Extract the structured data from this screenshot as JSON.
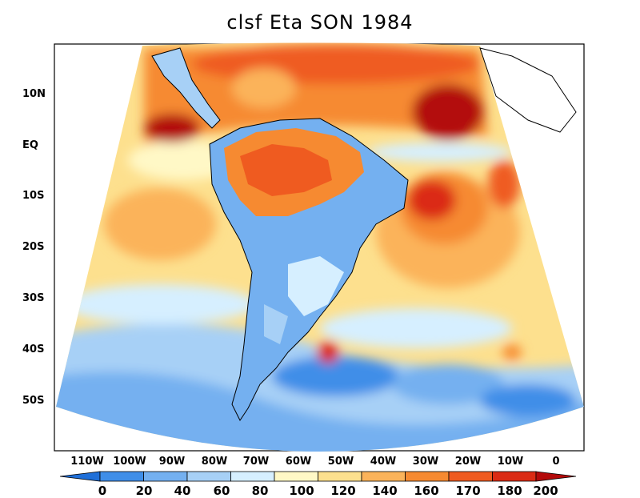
{
  "title": "clsf Eta SON 1984",
  "lat_labels": [
    "10N",
    "EQ",
    "10S",
    "20S",
    "30S",
    "40S",
    "50S"
  ],
  "lon_labels": [
    "110W",
    "100W",
    "90W",
    "80W",
    "70W",
    "60W",
    "50W",
    "40W",
    "30W",
    "20W",
    "10W",
    "0"
  ],
  "colorbar": {
    "labels": [
      "0",
      "20",
      "40",
      "60",
      "80",
      "100",
      "120",
      "140",
      "160",
      "170",
      "180",
      "200"
    ],
    "colors": [
      "#1f6fd8",
      "#3f8ee8",
      "#74b0f0",
      "#a7d0f6",
      "#d6efff",
      "#fff8c6",
      "#fde08e",
      "#fbb35a",
      "#f68a31",
      "#ef5b20",
      "#db2b14",
      "#b30a0a"
    ]
  }
}
